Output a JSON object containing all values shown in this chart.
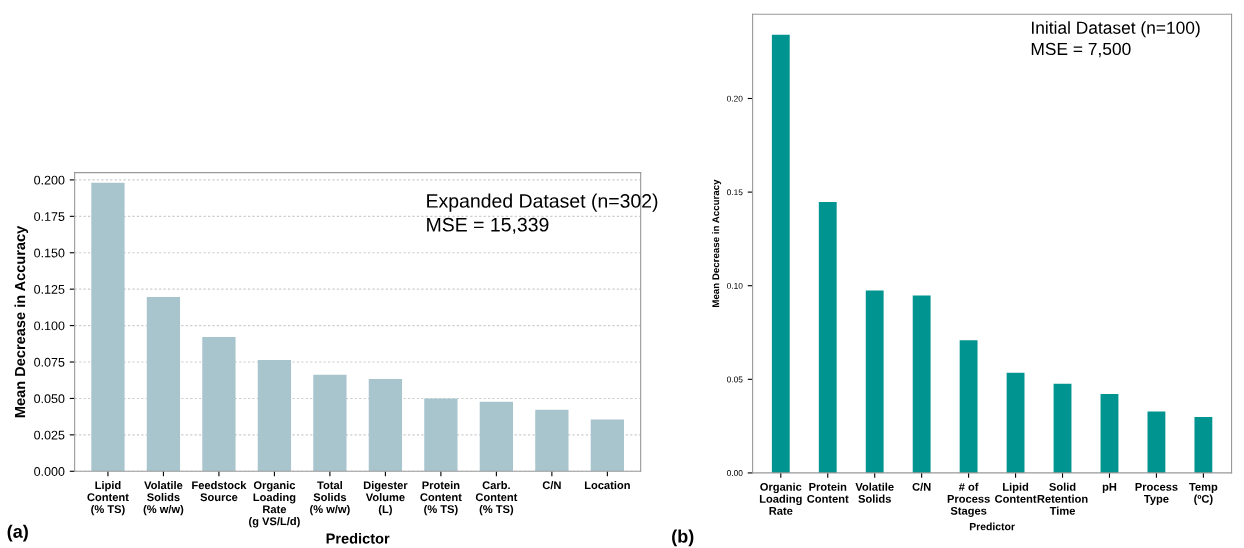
{
  "chart_data": [
    {
      "type": "bar",
      "xlabel": "Predictor",
      "ylabel": "Mean Decrease in Accuracy",
      "categories": [
        "Lipid\nContent\n(% TS)",
        "Volatile\nSolids\n(% w/w)",
        "Feedstock\nSource",
        "Organic\nLoading\nRate\n(g VS/L/d)",
        "Total\nSolids\n(% w/w)",
        "Digester\nVolume\n(L)",
        "Protein\nContent\n(% TS)",
        "Carb.\nContent\n(% TS)",
        "C/N",
        "Location"
      ],
      "values": [
        0.198,
        0.1196,
        0.0922,
        0.0763,
        0.0662,
        0.0634,
        0.05,
        0.0478,
        0.0422,
        0.0355
      ],
      "color": "#a8c5ce",
      "ylim": [
        0,
        0.205
      ],
      "yticks": [
        {
          "value": 0,
          "label": "0.000"
        },
        {
          "value": 0.025,
          "label": "0.025"
        },
        {
          "value": 0.05,
          "label": "0.050"
        },
        {
          "value": 0.075,
          "label": "0.075"
        },
        {
          "value": 0.1,
          "label": "0.100"
        },
        {
          "value": 0.125,
          "label": "0.125"
        },
        {
          "value": 0.15,
          "label": "0.150"
        },
        {
          "value": 0.175,
          "label": "0.175"
        },
        {
          "value": 0.2,
          "label": "0.200"
        }
      ],
      "grid": "y",
      "annotations": [
        "Expanded Dataset (n=302)\nMSE = 15,339",
        "(a)"
      ]
    },
    {
      "type": "bar",
      "xlabel": "Predictor",
      "ylabel": "Mean Decrease in Accuracy",
      "categories": [
        "Organic\nLoading\nRate",
        "Protein\nContent",
        "Volatile\nSolids",
        "C/N",
        "# of\nProcess\nStages",
        "Lipid\nContent",
        "Solid\nRetention\nTime",
        "pH",
        "Process\nType",
        "Temp\n(ºC)"
      ],
      "values": [
        0.234,
        0.1447,
        0.0975,
        0.0948,
        0.0709,
        0.0535,
        0.0476,
        0.0422,
        0.0328,
        0.0299
      ],
      "color": "#009490",
      "ylim": [
        0,
        0.245
      ],
      "yticks": [
        {
          "value": 0,
          "label": "0.00"
        },
        {
          "value": 0.05,
          "label": "0.05"
        },
        {
          "value": 0.1,
          "label": "0.10"
        },
        {
          "value": 0.15,
          "label": "0.15"
        },
        {
          "value": 0.2,
          "label": "0.20"
        }
      ],
      "grid": false,
      "annotations": [
        "Initial Dataset (n=100)\nMSE = 7,500",
        "(b)"
      ]
    }
  ]
}
